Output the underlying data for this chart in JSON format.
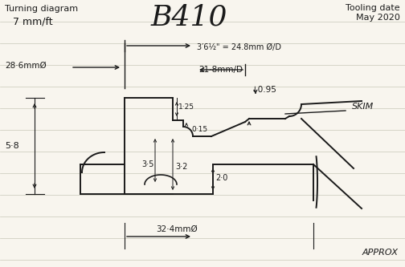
{
  "title_left": "Turning diagram",
  "title_right": "Tooling date\nMay 2020",
  "subtitle_left": "7 mm/ft",
  "subtitle_center": "B410",
  "bg_color": "#f8f5ee",
  "line_color": "#1a1a1a",
  "annotation_36half": "3′6½\" = 24.8mm Ø/D",
  "annotation_286": "28·6mmØ",
  "annotation_218": "21·8mm/D",
  "annotation_095": "↓0.95",
  "annotation_58": "5·8",
  "annotation_125": "1·25",
  "annotation_015": "0·15",
  "annotation_35": "3·5",
  "annotation_32": "3·2",
  "annotation_20": "2·0",
  "annotation_skim": "SKIM",
  "annotation_324": "32·4mmØ",
  "annotation_approx": "APPROX"
}
